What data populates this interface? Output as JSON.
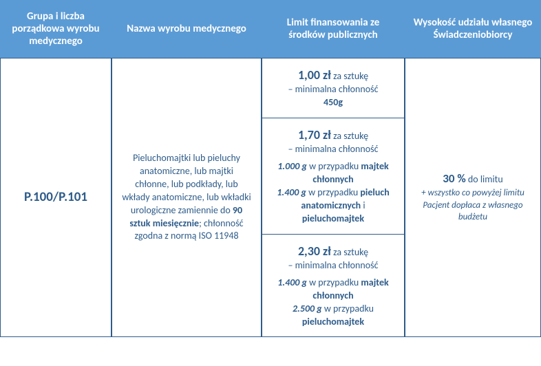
{
  "headers": {
    "col1": "Grupa i liczba porządkowa wyrobu medycznego",
    "col2": "Nazwa wyrobu medycznego",
    "col3": "Limit finansowania ze środków publicznych",
    "col4": "Wysokość udziału własnego Świadczeniobiorcy"
  },
  "row": {
    "code": "P.100/P.101",
    "desc_p1": "Pieluchomajtki lub pieluchy anatomiczne, lub majtki chłonne, lub podkłady, lub wkłady anatomiczne, lub wkładki urologiczne zamiennie do ",
    "desc_bold": "90 sztuk miesięcznie",
    "desc_p2": "; chłonność zgodna z normą ISO 11948",
    "limit": {
      "t1": {
        "price": "1,00 zł",
        "unit": " za sztukę",
        "line2": "– minimalna chłonność",
        "val": "450g"
      },
      "t2": {
        "price": "1,70 zł",
        "unit": " za sztukę",
        "line2": "– minimalna chłonność",
        "v1": "1.000 g",
        "d1": " w przypadku ",
        "b1": "majtek chłonnych",
        "v2": "1.400 g",
        "d2": " w przypadku ",
        "b2": "pieluch anatomicznych",
        "and": " i ",
        "b3": "pieluchomajtek"
      },
      "t3": {
        "price": "2,30 zł",
        "unit": " za sztukę",
        "line2": "– minimalna chłonność",
        "v1": "1.400 g",
        "d1": " w przypadku ",
        "b1": "majtek chłonnych",
        "v2": "2.500 g",
        "d2": " w przypadku ",
        "b2": "pieluchomajtek"
      }
    },
    "share": {
      "percent": "30 %",
      "percent_suffix": " do limitu",
      "note": "+ wszystko co powyżej limitu Pacjent dopłaca z własnego budżetu"
    }
  }
}
